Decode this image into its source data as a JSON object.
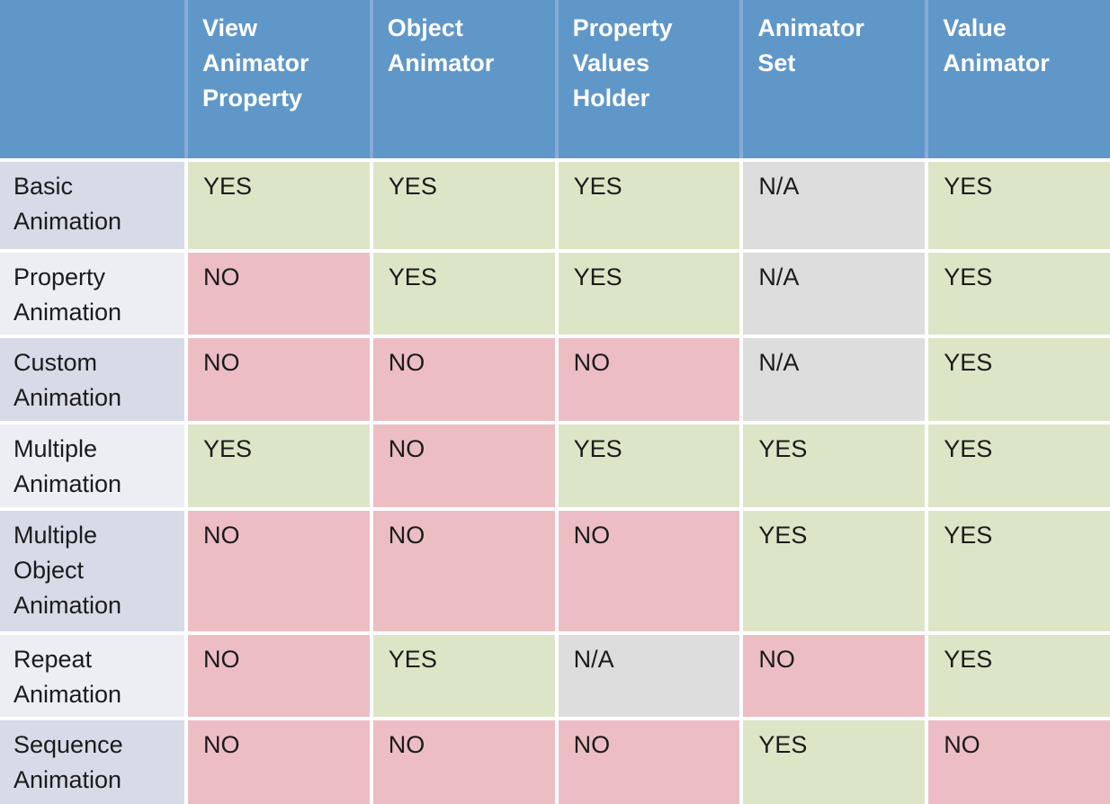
{
  "table": {
    "corner_label": "",
    "columns": [
      "View Animator Property",
      "Object Animator",
      "Property Values Holder",
      "Animator Set",
      "Value Animator"
    ],
    "rows": [
      {
        "label": "Basic Animation",
        "values": [
          "YES",
          "YES",
          "YES",
          "N/A",
          "YES"
        ]
      },
      {
        "label": "Property Animation",
        "values": [
          "NO",
          "YES",
          "YES",
          "N/A",
          "YES"
        ]
      },
      {
        "label": "Custom Animation",
        "values": [
          "NO",
          "NO",
          "NO",
          "N/A",
          "YES"
        ]
      },
      {
        "label": "Multiple Animation",
        "values": [
          "YES",
          "NO",
          "YES",
          "YES",
          "YES"
        ]
      },
      {
        "label": "Multiple Object Animation",
        "values": [
          "NO",
          "NO",
          "NO",
          "YES",
          "YES"
        ]
      },
      {
        "label": "Repeat Animation",
        "values": [
          "NO",
          "YES",
          "N/A",
          "NO",
          "YES"
        ]
      },
      {
        "label": "Sequence Animation",
        "values": [
          "NO",
          "NO",
          "NO",
          "YES",
          "NO"
        ]
      }
    ],
    "colors": {
      "header_bg": "#6097c9",
      "header_text": "#ffffff",
      "yes_bg": "#dde5c7",
      "no_bg": "#ecbec3",
      "na_bg": "#dddddd",
      "row_label_odd_bg": "#d7dbe8",
      "row_label_even_bg": "#eceef4"
    }
  }
}
